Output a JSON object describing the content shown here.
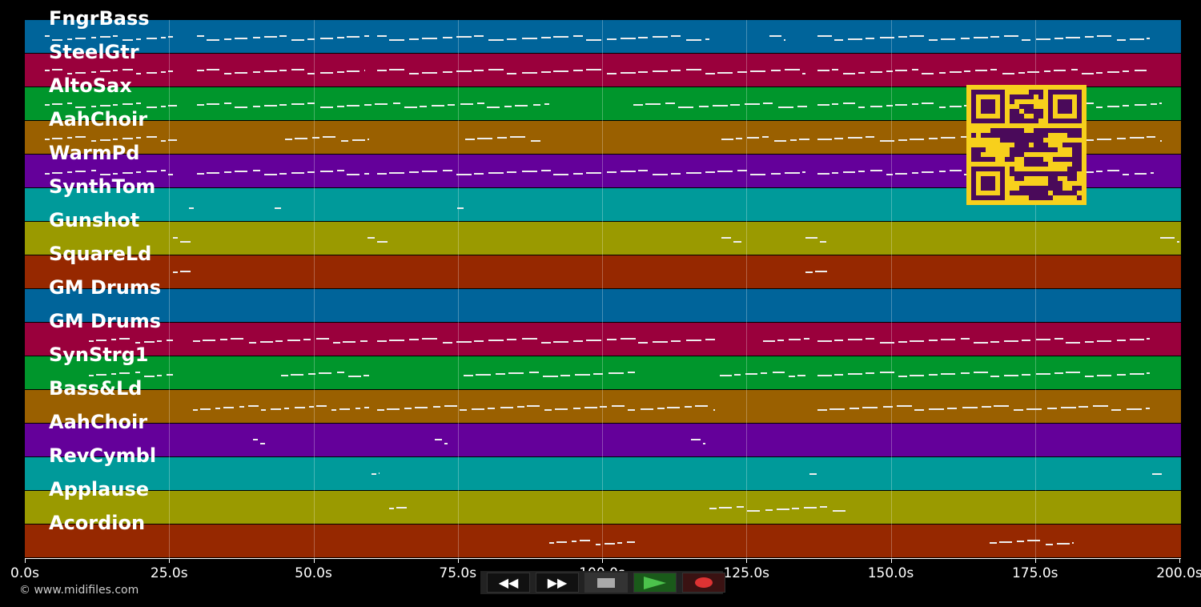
{
  "tracks": [
    {
      "label": "FngrBass",
      "color": "#00649a"
    },
    {
      "label": "SteelGtr",
      "color": "#9a003c"
    },
    {
      "label": "AltoSax",
      "color": "#00962c"
    },
    {
      "label": "AahChoir",
      "color": "#9a6000"
    },
    {
      "label": "WarmPd",
      "color": "#64009a"
    },
    {
      "label": "SynthTom",
      "color": "#009a9a"
    },
    {
      "label": "Gunshot",
      "color": "#9a9a00"
    },
    {
      "label": "SquareLd",
      "color": "#962800"
    },
    {
      "label": "GM Drums",
      "color": "#00649a"
    },
    {
      "label": "GM Drums",
      "color": "#9a003c"
    },
    {
      "label": "SynStrg1",
      "color": "#00962c"
    },
    {
      "label": "Bass&Ld",
      "color": "#9a6000"
    },
    {
      "label": "AahChoir",
      "color": "#64009a"
    },
    {
      "label": "RevCymbl",
      "color": "#009a9a"
    },
    {
      "label": "Applause",
      "color": "#9a9a00"
    },
    {
      "label": "Acordion",
      "color": "#962800"
    }
  ],
  "axis": {
    "ticks": [
      "0.0s",
      "25.0s",
      "50.0s",
      "75.0s",
      "100.0s",
      "125.0s",
      "150.0s",
      "175.0s",
      "200.0s"
    ]
  },
  "copyright": "© www.midifiles.com",
  "transport": {
    "rewind_icon": "rewind-icon",
    "forward_icon": "fast-forward-icon",
    "stop_icon": "stop-icon",
    "play_icon": "play-icon",
    "record_icon": "record-icon"
  },
  "qr_icon": "qr-code-icon"
}
